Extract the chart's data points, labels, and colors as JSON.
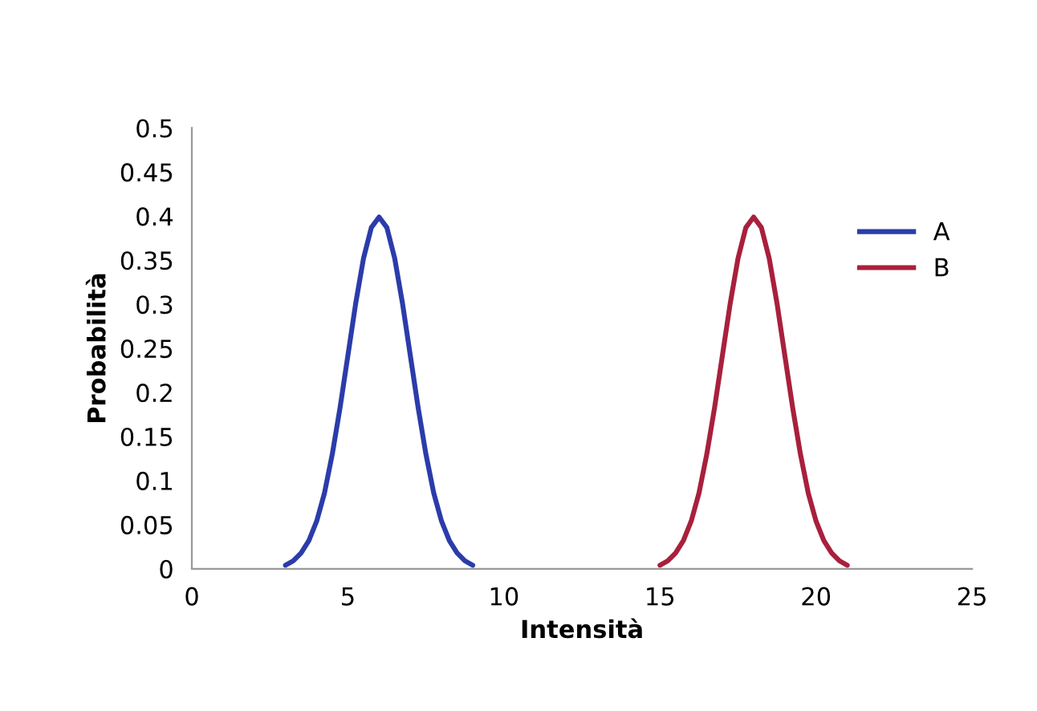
{
  "chart_data": {
    "type": "line",
    "xlabel": "Intensità",
    "ylabel": "Probabilità",
    "xlim": [
      0,
      25
    ],
    "xticks": [
      0,
      5,
      10,
      15,
      20,
      25
    ],
    "ylim": [
      0,
      0.5
    ],
    "yticks": [
      0,
      0.05,
      0.1,
      0.15,
      0.2,
      0.25,
      0.3,
      0.35,
      0.4,
      0.45,
      0.5
    ],
    "grid": false,
    "legend": "right",
    "marker": "none",
    "line_style": "solid",
    "series": [
      {
        "name": "A",
        "color": "#2b3caa",
        "x": [
          3,
          3.25,
          3.5,
          3.75,
          4,
          4.25,
          4.5,
          4.75,
          5,
          5.25,
          5.5,
          5.75,
          6,
          6.25,
          6.5,
          6.75,
          7,
          7.25,
          7.5,
          7.75,
          8,
          8.25,
          8.5,
          8.75,
          9
        ],
        "values": [
          0.004,
          0.009,
          0.018,
          0.032,
          0.054,
          0.086,
          0.13,
          0.183,
          0.242,
          0.301,
          0.352,
          0.387,
          0.399,
          0.387,
          0.352,
          0.301,
          0.242,
          0.183,
          0.13,
          0.086,
          0.054,
          0.032,
          0.018,
          0.009,
          0.004
        ]
      },
      {
        "name": "B",
        "color": "#a8203c",
        "x": [
          15,
          15.25,
          15.5,
          15.75,
          16,
          16.25,
          16.5,
          16.75,
          17,
          17.25,
          17.5,
          17.75,
          18,
          18.25,
          18.5,
          18.75,
          19,
          19.25,
          19.5,
          19.75,
          20,
          20.25,
          20.5,
          20.75,
          21
        ],
        "values": [
          0.004,
          0.009,
          0.018,
          0.032,
          0.054,
          0.086,
          0.13,
          0.183,
          0.242,
          0.301,
          0.352,
          0.387,
          0.399,
          0.387,
          0.352,
          0.301,
          0.242,
          0.183,
          0.13,
          0.086,
          0.054,
          0.032,
          0.018,
          0.009,
          0.004
        ]
      }
    ]
  }
}
